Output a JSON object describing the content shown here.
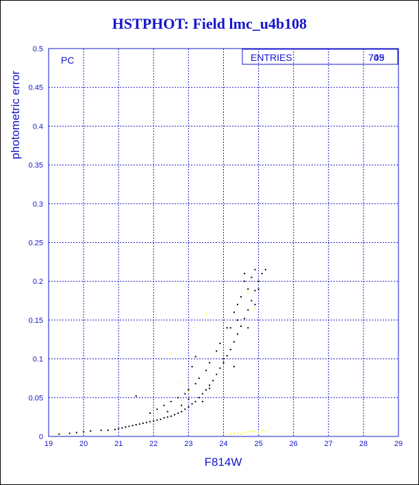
{
  "chart_data": {
    "type": "scatter",
    "title": "HSTPHOT: Field lmc_u4b108",
    "xlabel": "F814W",
    "ylabel": "photometric error",
    "xlim": [
      19,
      29
    ],
    "ylim": [
      0,
      0.5
    ],
    "x_ticks": [
      "19",
      "20",
      "21",
      "22",
      "23",
      "24",
      "25",
      "26",
      "27",
      "28",
      "29"
    ],
    "y_ticks": [
      "0",
      "0.05",
      "0.1",
      "0.15",
      "0.2",
      "0.25",
      "0.3",
      "0.35",
      "0.4",
      "0.45",
      "0.5"
    ],
    "grid": true,
    "panel_label": "PC",
    "stats": {
      "label": "ENTRIES",
      "values": [
        "709",
        "745"
      ]
    },
    "colors": {
      "text": "#1414cc",
      "grid": "#1414cc",
      "main_points": "#000000",
      "flagged_points": "#ffff00"
    },
    "series": [
      {
        "points": [
          [
            19.3,
            0.003
          ],
          [
            19.6,
            0.004
          ],
          [
            19.8,
            0.005
          ],
          [
            20.0,
            0.006
          ],
          [
            20.2,
            0.007
          ],
          [
            20.5,
            0.008
          ],
          [
            20.7,
            0.008
          ],
          [
            20.9,
            0.009
          ],
          [
            21.0,
            0.01
          ],
          [
            21.1,
            0.011
          ],
          [
            21.2,
            0.012
          ],
          [
            21.3,
            0.013
          ],
          [
            21.4,
            0.014
          ],
          [
            21.5,
            0.015
          ],
          [
            21.6,
            0.016
          ],
          [
            21.7,
            0.017
          ],
          [
            21.8,
            0.018
          ],
          [
            21.9,
            0.019
          ],
          [
            22.0,
            0.02
          ],
          [
            22.1,
            0.021
          ],
          [
            22.2,
            0.022
          ],
          [
            22.3,
            0.024
          ],
          [
            22.4,
            0.025
          ],
          [
            22.5,
            0.026
          ],
          [
            22.6,
            0.028
          ],
          [
            22.7,
            0.03
          ],
          [
            22.8,
            0.032
          ],
          [
            22.9,
            0.035
          ],
          [
            23.0,
            0.038
          ],
          [
            23.1,
            0.042
          ],
          [
            23.2,
            0.045
          ],
          [
            23.3,
            0.05
          ],
          [
            23.4,
            0.055
          ],
          [
            23.5,
            0.06
          ],
          [
            23.6,
            0.066
          ],
          [
            23.7,
            0.072
          ],
          [
            23.8,
            0.08
          ],
          [
            23.9,
            0.088
          ],
          [
            24.0,
            0.095
          ],
          [
            24.1,
            0.104
          ],
          [
            24.2,
            0.112
          ],
          [
            24.3,
            0.122
          ],
          [
            24.4,
            0.132
          ],
          [
            24.5,
            0.142
          ],
          [
            24.6,
            0.152
          ],
          [
            24.7,
            0.163
          ],
          [
            24.8,
            0.175
          ],
          [
            24.9,
            0.188
          ],
          [
            25.0,
            0.2
          ],
          [
            25.1,
            0.21
          ],
          [
            25.2,
            0.215
          ],
          [
            24.6,
            0.21
          ],
          [
            24.6,
            0.2
          ],
          [
            24.7,
            0.19
          ],
          [
            24.5,
            0.18
          ],
          [
            24.4,
            0.17
          ],
          [
            24.3,
            0.16
          ],
          [
            24.1,
            0.14
          ],
          [
            23.9,
            0.12
          ],
          [
            23.8,
            0.11
          ],
          [
            23.6,
            0.095
          ],
          [
            23.5,
            0.085
          ],
          [
            23.3,
            0.075
          ],
          [
            23.2,
            0.068
          ],
          [
            23.0,
            0.06
          ],
          [
            22.9,
            0.055
          ],
          [
            22.7,
            0.05
          ],
          [
            22.5,
            0.045
          ],
          [
            22.3,
            0.04
          ],
          [
            22.1,
            0.035
          ],
          [
            21.5,
            0.052
          ],
          [
            21.9,
            0.03
          ],
          [
            22.4,
            0.032
          ],
          [
            22.8,
            0.04
          ],
          [
            23.1,
            0.09
          ],
          [
            23.2,
            0.103
          ],
          [
            23.6,
            0.062
          ],
          [
            24.0,
            0.1
          ],
          [
            24.3,
            0.09
          ],
          [
            24.7,
            0.14
          ],
          [
            24.9,
            0.17
          ],
          [
            25.0,
            0.19
          ],
          [
            24.8,
            0.205
          ],
          [
            24.9,
            0.215
          ],
          [
            24.2,
            0.14
          ],
          [
            24.4,
            0.15
          ],
          [
            23.4,
            0.045
          ],
          [
            23.0,
            0.048
          ]
        ]
      },
      {
        "points": [
          [
            22.5,
            0.108
          ],
          [
            22.8,
            0.068
          ],
          [
            23.15,
            0.14
          ],
          [
            23.5,
            0.158
          ],
          [
            24.2,
            0.003
          ],
          [
            24.4,
            0.004
          ],
          [
            24.6,
            0.005
          ],
          [
            24.7,
            0.006
          ],
          [
            24.8,
            0.007
          ],
          [
            24.9,
            0.006
          ],
          [
            25.0,
            0.005
          ],
          [
            25.1,
            0.008
          ],
          [
            24.7,
            0.185
          ],
          [
            24.9,
            0.164
          ],
          [
            23.0,
            0.058
          ],
          [
            24.5,
            0.003
          ],
          [
            24.3,
            0.005
          ],
          [
            25.2,
            0.006
          ]
        ]
      }
    ]
  }
}
